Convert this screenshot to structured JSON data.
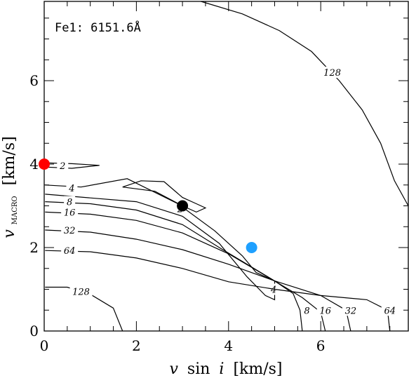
{
  "chart_data": {
    "type": "contour",
    "panel_label": "Fe1: 6151.6Å",
    "xlabel": {
      "v": "v",
      "sin": "sin",
      "i": "i",
      "unit": "[km/s]"
    },
    "ylabel": {
      "v": "v",
      "sub": "MACRO",
      "unit": "[km/s]"
    },
    "xlim": [
      0,
      7.9
    ],
    "ylim": [
      0,
      7.9
    ],
    "xticks": [
      0,
      2,
      4,
      6
    ],
    "yticks": [
      0,
      2,
      4,
      6
    ],
    "grid": false,
    "contours": [
      {
        "level": "2",
        "label_at": [
          [
            0.4,
            3.97
          ],
          [
            2.95,
            2.93
          ]
        ],
        "points": [
          [
            0.02,
            4.03
          ],
          [
            0.6,
            4.01
          ],
          [
            1.2,
            3.97
          ],
          [
            0.6,
            3.9
          ],
          [
            0.02,
            3.93
          ]
        ]
      },
      {
        "level": "2",
        "label_at": [],
        "points": [
          [
            1.7,
            3.45
          ],
          [
            2.1,
            3.6
          ],
          [
            2.6,
            3.58
          ],
          [
            3.0,
            3.2
          ],
          [
            3.3,
            3.05
          ],
          [
            3.5,
            2.95
          ],
          [
            3.3,
            2.85
          ],
          [
            3.0,
            3.0
          ],
          [
            2.4,
            3.35
          ],
          [
            1.7,
            3.45
          ]
        ]
      },
      {
        "level": "4",
        "label_at": [
          [
            0.6,
            3.43
          ],
          [
            4.98,
            1.0
          ]
        ],
        "points": [
          [
            0.02,
            3.5
          ],
          [
            0.8,
            3.45
          ],
          [
            1.8,
            3.65
          ],
          [
            2.9,
            3.05
          ],
          [
            3.7,
            2.4
          ],
          [
            4.3,
            1.8
          ],
          [
            4.6,
            1.4
          ],
          [
            5.0,
            1.2
          ],
          [
            5.0,
            0.75
          ],
          [
            4.8,
            0.85
          ],
          [
            4.4,
            1.3
          ],
          [
            3.8,
            2.1
          ],
          [
            3.0,
            2.75
          ],
          [
            2.0,
            3.1
          ],
          [
            0.02,
            3.28
          ]
        ]
      },
      {
        "level": "8",
        "label_at": [
          [
            0.55,
            3.1
          ],
          [
            5.7,
            0.5
          ]
        ],
        "points": [
          [
            0.02,
            3.1
          ],
          [
            1.0,
            3.05
          ],
          [
            2.0,
            2.9
          ],
          [
            3.0,
            2.55
          ],
          [
            3.8,
            2.0
          ],
          [
            4.4,
            1.6
          ],
          [
            5.0,
            1.2
          ],
          [
            5.4,
            0.9
          ],
          [
            5.55,
            0.5
          ],
          [
            5.6,
            0.0
          ]
        ]
      },
      {
        "level": "16",
        "label_at": [
          [
            0.55,
            2.85
          ],
          [
            6.1,
            0.5
          ]
        ],
        "points": [
          [
            0.02,
            2.85
          ],
          [
            1.0,
            2.8
          ],
          [
            2.0,
            2.65
          ],
          [
            3.0,
            2.35
          ],
          [
            4.0,
            1.85
          ],
          [
            5.0,
            1.2
          ],
          [
            5.6,
            0.8
          ],
          [
            6.0,
            0.45
          ],
          [
            6.1,
            0.0
          ]
        ]
      },
      {
        "level": "32",
        "label_at": [
          [
            0.55,
            2.42
          ],
          [
            6.65,
            0.5
          ]
        ],
        "points": [
          [
            0.02,
            2.42
          ],
          [
            1.0,
            2.37
          ],
          [
            2.0,
            2.2
          ],
          [
            3.0,
            1.95
          ],
          [
            4.0,
            1.6
          ],
          [
            5.0,
            1.2
          ],
          [
            6.0,
            0.85
          ],
          [
            6.55,
            0.5
          ],
          [
            6.65,
            0.0
          ]
        ]
      },
      {
        "level": "64",
        "label_at": [
          [
            0.55,
            1.93
          ],
          [
            7.5,
            0.5
          ]
        ],
        "points": [
          [
            0.02,
            1.93
          ],
          [
            1.0,
            1.9
          ],
          [
            2.0,
            1.75
          ],
          [
            3.0,
            1.5
          ],
          [
            4.0,
            1.18
          ],
          [
            5.0,
            1.0
          ],
          [
            6.0,
            0.85
          ],
          [
            7.0,
            0.75
          ],
          [
            7.45,
            0.5
          ],
          [
            7.5,
            0.0
          ]
        ]
      },
      {
        "level": "128",
        "label_at": [
          [
            0.8,
            0.95
          ]
        ],
        "points": [
          [
            0.02,
            1.05
          ],
          [
            0.5,
            1.05
          ],
          [
            1.0,
            0.88
          ],
          [
            1.5,
            0.55
          ],
          [
            1.7,
            0.0
          ]
        ]
      },
      {
        "level": "128",
        "label_at": [
          [
            6.25,
            6.2
          ]
        ],
        "points": [
          [
            3.4,
            7.9
          ],
          [
            4.3,
            7.6
          ],
          [
            5.1,
            7.2
          ],
          [
            5.8,
            6.7
          ],
          [
            6.4,
            6.0
          ],
          [
            6.9,
            5.3
          ],
          [
            7.3,
            4.5
          ],
          [
            7.6,
            3.6
          ],
          [
            7.9,
            3.0
          ]
        ]
      }
    ],
    "markers": [
      {
        "name": "red",
        "x": 0.0,
        "y": 4.0,
        "color": "#ff0000"
      },
      {
        "name": "black",
        "x": 3.0,
        "y": 3.0,
        "color": "#000000"
      },
      {
        "name": "blue",
        "x": 4.5,
        "y": 2.0,
        "color": "#1ea0ff"
      }
    ]
  }
}
